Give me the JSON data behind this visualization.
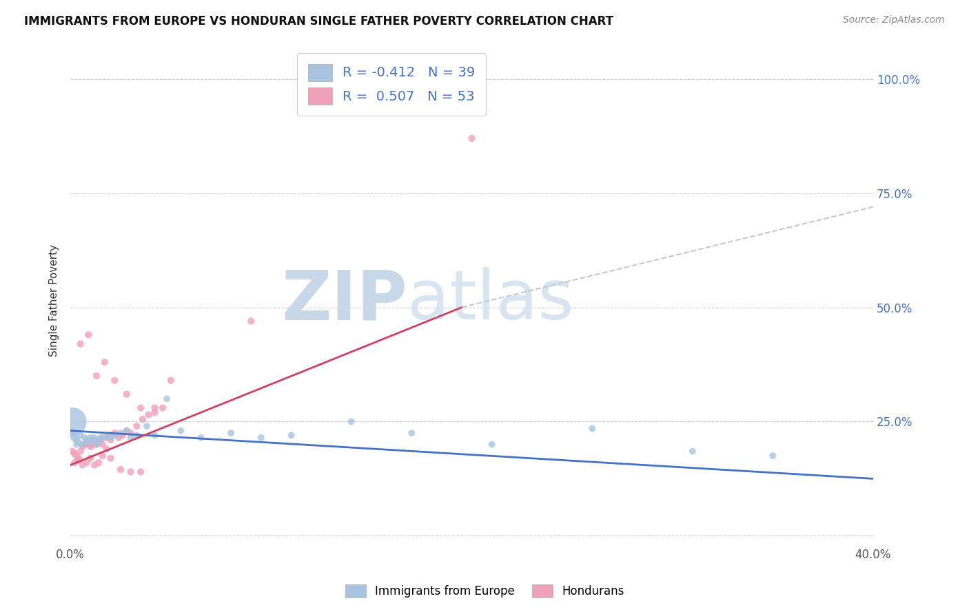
{
  "title": "IMMIGRANTS FROM EUROPE VS HONDURAN SINGLE FATHER POVERTY CORRELATION CHART",
  "source": "Source: ZipAtlas.com",
  "ylabel": "Single Father Poverty",
  "xlim": [
    0.0,
    0.4
  ],
  "ylim": [
    -0.02,
    1.05
  ],
  "yticks": [
    0.0,
    0.25,
    0.5,
    0.75,
    1.0
  ],
  "ytick_labels": [
    "",
    "25.0%",
    "50.0%",
    "75.0%",
    "100.0%"
  ],
  "xticks": [
    0.0,
    0.1,
    0.2,
    0.3,
    0.4
  ],
  "xtick_labels": [
    "0.0%",
    "",
    "",
    "",
    "40.0%"
  ],
  "legend_labels": [
    "Immigrants from Europe",
    "Hondurans"
  ],
  "blue_R": -0.412,
  "blue_N": 39,
  "pink_R": 0.507,
  "pink_N": 53,
  "blue_color": "#a8c4e0",
  "pink_color": "#f0a0b8",
  "blue_line_color": "#4472c4",
  "pink_line_color": "#d04060",
  "dash_line_color": "#c0c8d0",
  "text_color": "#4472c4",
  "watermark_zip": "ZIP",
  "watermark_atlas": "atlas",
  "watermark_color": "#c8d8e8",
  "blue_x": [
    0.001,
    0.002,
    0.003,
    0.004,
    0.005,
    0.006,
    0.007,
    0.008,
    0.009,
    0.01,
    0.011,
    0.012,
    0.013,
    0.014,
    0.015,
    0.016,
    0.018,
    0.02,
    0.022,
    0.025,
    0.028,
    0.03,
    0.033,
    0.038,
    0.042,
    0.048,
    0.055,
    0.065,
    0.08,
    0.095,
    0.11,
    0.14,
    0.17,
    0.21,
    0.26,
    0.31,
    0.35,
    0.001,
    0.003
  ],
  "blue_y": [
    0.225,
    0.215,
    0.21,
    0.205,
    0.22,
    0.2,
    0.215,
    0.21,
    0.205,
    0.215,
    0.21,
    0.215,
    0.2,
    0.205,
    0.215,
    0.215,
    0.215,
    0.215,
    0.22,
    0.225,
    0.23,
    0.215,
    0.22,
    0.24,
    0.22,
    0.3,
    0.23,
    0.215,
    0.225,
    0.215,
    0.22,
    0.25,
    0.225,
    0.2,
    0.235,
    0.185,
    0.175,
    0.25,
    0.2
  ],
  "blue_size": [
    30,
    30,
    20,
    20,
    20,
    20,
    20,
    20,
    20,
    20,
    20,
    20,
    20,
    20,
    20,
    20,
    20,
    20,
    20,
    20,
    20,
    20,
    20,
    20,
    20,
    20,
    20,
    20,
    20,
    20,
    20,
    20,
    20,
    20,
    20,
    20,
    20,
    350,
    20
  ],
  "pink_x": [
    0.001,
    0.002,
    0.003,
    0.004,
    0.005,
    0.006,
    0.007,
    0.008,
    0.009,
    0.01,
    0.011,
    0.012,
    0.013,
    0.014,
    0.015,
    0.016,
    0.018,
    0.019,
    0.02,
    0.022,
    0.024,
    0.026,
    0.028,
    0.03,
    0.033,
    0.036,
    0.039,
    0.042,
    0.046,
    0.05,
    0.002,
    0.004,
    0.006,
    0.008,
    0.01,
    0.012,
    0.014,
    0.016,
    0.018,
    0.02,
    0.025,
    0.03,
    0.035,
    0.005,
    0.009,
    0.013,
    0.017,
    0.022,
    0.028,
    0.035,
    0.042,
    0.09,
    0.2
  ],
  "pink_y": [
    0.185,
    0.18,
    0.175,
    0.17,
    0.185,
    0.195,
    0.2,
    0.205,
    0.2,
    0.195,
    0.2,
    0.21,
    0.2,
    0.205,
    0.21,
    0.2,
    0.215,
    0.22,
    0.21,
    0.225,
    0.215,
    0.22,
    0.23,
    0.225,
    0.24,
    0.255,
    0.265,
    0.27,
    0.28,
    0.34,
    0.16,
    0.165,
    0.155,
    0.16,
    0.17,
    0.155,
    0.16,
    0.175,
    0.19,
    0.17,
    0.145,
    0.14,
    0.14,
    0.42,
    0.44,
    0.35,
    0.38,
    0.34,
    0.31,
    0.28,
    0.28,
    0.47,
    0.87
  ],
  "blue_line_x0": 0.0,
  "blue_line_x1": 0.4,
  "blue_line_y0": 0.23,
  "blue_line_y1": 0.125,
  "pink_line_x0": 0.0,
  "pink_line_x1": 0.195,
  "pink_line_y0": 0.155,
  "pink_line_y1": 0.5,
  "dash_line_x0": 0.195,
  "dash_line_x1": 0.4,
  "dash_line_y0": 0.5,
  "dash_line_y1": 0.72
}
